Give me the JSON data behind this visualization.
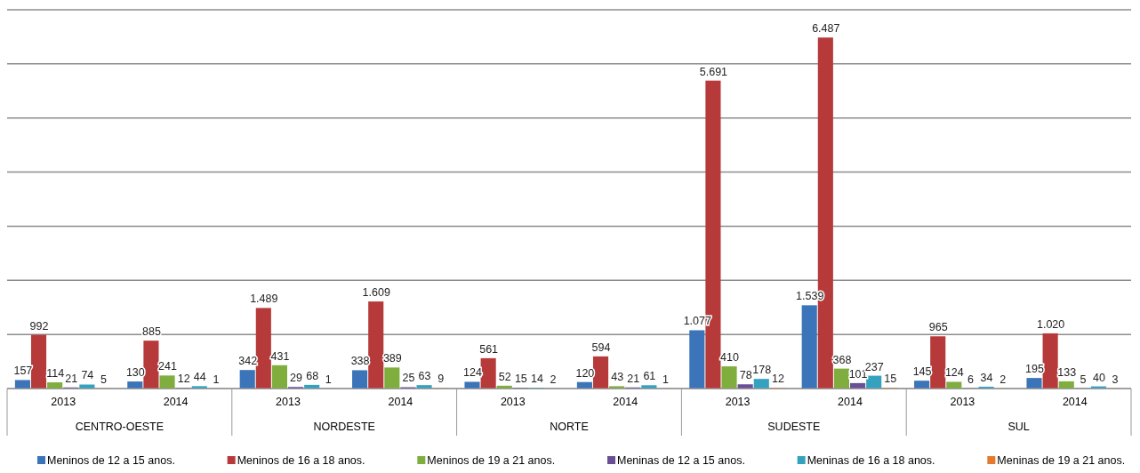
{
  "chart_data": {
    "type": "bar",
    "categories": [
      "2013",
      "2014",
      "2013",
      "2014",
      "2013",
      "2014",
      "2013",
      "2014",
      "2013",
      "2014"
    ],
    "annotations": [
      "CENTRO-OESTE",
      "NORDESTE",
      "NORTE",
      "SUDESTE",
      "SUL"
    ],
    "series": [
      {
        "name": "Meninos de 12 a 15 anos.",
        "color": "#3b74b9",
        "values": [
          157,
          130,
          342,
          338,
          124,
          120,
          1077,
          1539,
          145,
          195
        ],
        "value_labels": [
          "157",
          "130",
          "342",
          "338",
          "124",
          "120",
          "1.077",
          "1.539",
          "145",
          "195"
        ]
      },
      {
        "name": "Meninos de 16 a 18 anos.",
        "color": "#b73a3a",
        "values": [
          992,
          885,
          1489,
          1609,
          561,
          594,
          5691,
          6487,
          965,
          1020
        ],
        "value_labels": [
          "992",
          "885",
          "1.489",
          "1.609",
          "561",
          "594",
          "5.691",
          "6.487",
          "965",
          "1.020"
        ]
      },
      {
        "name": "Meninos de 19 a 21 anos.",
        "color": "#7fae3f",
        "values": [
          114,
          241,
          431,
          389,
          52,
          43,
          410,
          368,
          124,
          133
        ],
        "value_labels": [
          "114",
          "241",
          "431",
          "389",
          "52",
          "43",
          "410",
          "368",
          "124",
          "133"
        ]
      },
      {
        "name": "Meninas de 12 a 15 anos.",
        "color": "#6b4f96",
        "values": [
          21,
          12,
          29,
          25,
          15,
          21,
          78,
          101,
          6,
          5
        ],
        "value_labels": [
          "21",
          "12",
          "29",
          "25",
          "15",
          "21",
          "78",
          "101",
          "6",
          "5"
        ]
      },
      {
        "name": "Meninas de 16 a 18 anos.",
        "color": "#34a2bf",
        "values": [
          74,
          44,
          68,
          63,
          14,
          61,
          178,
          237,
          34,
          40
        ],
        "value_labels": [
          "74",
          "44",
          "68",
          "63",
          "14",
          "61",
          "178",
          "237",
          "34",
          "40"
        ]
      },
      {
        "name": "Meninas de 19 a 21 anos.",
        "color": "#e37b2a",
        "values": [
          5,
          1,
          1,
          9,
          2,
          1,
          12,
          15,
          2,
          3
        ],
        "value_labels": [
          "5",
          "1",
          "1",
          "9",
          "2",
          "1",
          "12",
          "15",
          "2",
          "3"
        ]
      }
    ],
    "ylim": [
      0,
      7000
    ],
    "yticks": [
      {
        "value": 0,
        "label": null
      },
      {
        "value": 1000,
        "label": null
      },
      {
        "value": 2000,
        "label": null
      },
      {
        "value": 3000,
        "label": null
      },
      {
        "value": 4000,
        "label": null
      },
      {
        "value": 5000,
        "label": null
      },
      {
        "value": 6000,
        "label": null
      },
      {
        "value": 7000,
        "label": null
      }
    ],
    "grid": "y",
    "legend": "bottom",
    "tick_labels": "x"
  }
}
